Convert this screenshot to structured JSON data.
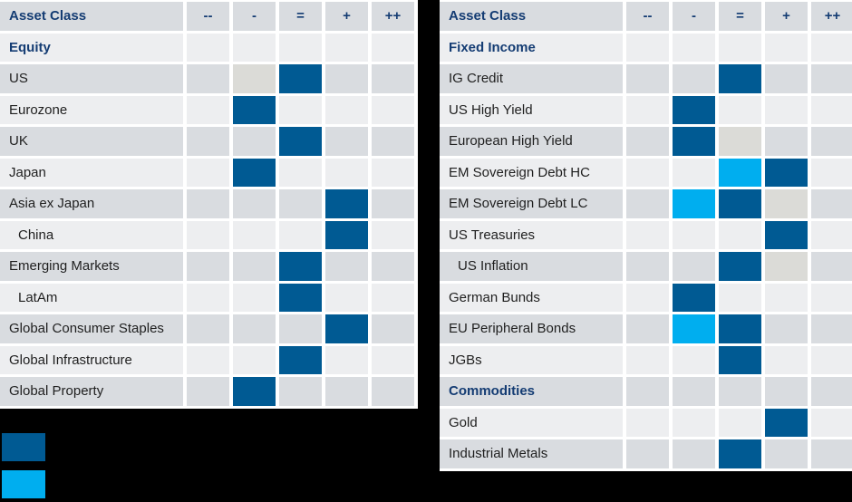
{
  "columns": [
    "--",
    "-",
    "=",
    "+",
    "++"
  ],
  "colors": {
    "current": "#005a93",
    "changed": "#00aeef",
    "previous": "#dbdbd7",
    "stripe_dark": "#d9dce0",
    "stripe_light": "#edeef0",
    "header_text": "#143c73",
    "label_text": "#1f1f1f",
    "background": "#000000"
  },
  "chart_data": [
    {
      "type": "heatmap",
      "title": "Asset Class positioning matrix (Equity)",
      "header_label": "Asset Class",
      "columns": [
        "--",
        "-",
        "=",
        "+",
        "++"
      ],
      "legend_position": "bottom-left",
      "rows": [
        {
          "label": "Equity",
          "section": true,
          "indent": false,
          "cells": [
            "",
            "",
            "",
            "",
            ""
          ]
        },
        {
          "label": "US",
          "section": false,
          "indent": false,
          "cells": [
            "",
            "previous",
            "current",
            "",
            ""
          ]
        },
        {
          "label": "Eurozone",
          "section": false,
          "indent": false,
          "cells": [
            "",
            "current",
            "",
            "",
            ""
          ]
        },
        {
          "label": "UK",
          "section": false,
          "indent": false,
          "cells": [
            "",
            "",
            "current",
            "",
            ""
          ]
        },
        {
          "label": "Japan",
          "section": false,
          "indent": false,
          "cells": [
            "",
            "current",
            "",
            "",
            ""
          ]
        },
        {
          "label": "Asia ex Japan",
          "section": false,
          "indent": false,
          "cells": [
            "",
            "",
            "",
            "current",
            ""
          ]
        },
        {
          "label": "China",
          "section": false,
          "indent": true,
          "cells": [
            "",
            "",
            "",
            "current",
            ""
          ]
        },
        {
          "label": "Emerging Markets",
          "section": false,
          "indent": false,
          "cells": [
            "",
            "",
            "current",
            "",
            ""
          ]
        },
        {
          "label": "LatAm",
          "section": false,
          "indent": true,
          "cells": [
            "",
            "",
            "current",
            "",
            ""
          ]
        },
        {
          "label": "Global Consumer Staples",
          "section": false,
          "indent": false,
          "cells": [
            "",
            "",
            "",
            "current",
            ""
          ]
        },
        {
          "label": "Global Infrastructure",
          "section": false,
          "indent": false,
          "cells": [
            "",
            "",
            "current",
            "",
            ""
          ]
        },
        {
          "label": "Global Property",
          "section": false,
          "indent": false,
          "cells": [
            "",
            "current",
            "",
            "",
            ""
          ]
        }
      ]
    },
    {
      "type": "heatmap",
      "title": "Asset Class positioning matrix (Fixed Income & Commodities)",
      "header_label": "Asset Class",
      "columns": [
        "--",
        "-",
        "=",
        "+",
        "++"
      ],
      "legend_position": "bottom-left",
      "rows": [
        {
          "label": "Fixed Income",
          "section": true,
          "indent": false,
          "cells": [
            "",
            "",
            "",
            "",
            ""
          ]
        },
        {
          "label": "IG Credit",
          "section": false,
          "indent": false,
          "cells": [
            "",
            "",
            "current",
            "",
            ""
          ]
        },
        {
          "label": "US High Yield",
          "section": false,
          "indent": false,
          "cells": [
            "",
            "current",
            "",
            "",
            ""
          ]
        },
        {
          "label": "European High Yield",
          "section": false,
          "indent": false,
          "cells": [
            "",
            "current",
            "previous",
            "",
            ""
          ]
        },
        {
          "label": "EM Sovereign Debt HC",
          "section": false,
          "indent": false,
          "cells": [
            "",
            "",
            "changed",
            "current",
            ""
          ]
        },
        {
          "label": "EM Sovereign Debt LC",
          "section": false,
          "indent": false,
          "cells": [
            "",
            "changed",
            "current",
            "previous",
            ""
          ]
        },
        {
          "label": "US Treasuries",
          "section": false,
          "indent": false,
          "cells": [
            "",
            "",
            "",
            "current",
            ""
          ]
        },
        {
          "label": "US Inflation",
          "section": false,
          "indent": true,
          "cells": [
            "",
            "",
            "current",
            "previous",
            ""
          ]
        },
        {
          "label": "German Bunds",
          "section": false,
          "indent": false,
          "cells": [
            "",
            "current",
            "",
            "",
            ""
          ]
        },
        {
          "label": "EU Peripheral Bonds",
          "section": false,
          "indent": false,
          "cells": [
            "",
            "changed",
            "current",
            "",
            ""
          ]
        },
        {
          "label": "JGBs",
          "section": false,
          "indent": false,
          "cells": [
            "",
            "",
            "current",
            "",
            ""
          ]
        },
        {
          "label": "Commodities",
          "section": true,
          "indent": false,
          "cells": [
            "",
            "",
            "",
            "",
            ""
          ]
        },
        {
          "label": "Gold",
          "section": false,
          "indent": false,
          "cells": [
            "",
            "",
            "",
            "current",
            ""
          ]
        },
        {
          "label": "Industrial Metals",
          "section": false,
          "indent": false,
          "cells": [
            "",
            "",
            "current",
            "",
            ""
          ]
        }
      ]
    }
  ],
  "legend": [
    {
      "name": "legend-current-swatch",
      "state": "current",
      "label": ""
    },
    {
      "name": "legend-changed-swatch",
      "state": "changed",
      "label": ""
    }
  ]
}
